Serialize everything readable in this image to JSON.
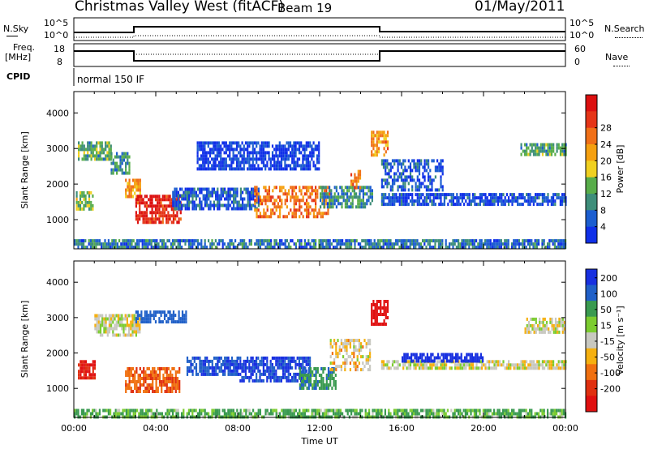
{
  "header": {
    "title": "Christmas Valley West (fitACF)",
    "beam": "Beam 19",
    "date": "01/May/2011"
  },
  "status_panel": {
    "left_top_label": "N.Sky",
    "left_y_top": "10^5",
    "left_y_bot": "10^0",
    "right_y_top": "10^5",
    "right_y_bot": "10^0",
    "right_top_label": "N.Search",
    "freq_label_1": "Freq.",
    "freq_label_2": "[MHz]",
    "freq_tick_hi": "18",
    "freq_tick_lo": "8",
    "nave_tick_hi": "60",
    "nave_tick_lo": "0",
    "nave_label": "Nave",
    "cpid_label": "CPID",
    "cpid_value": "normal 150 IF"
  },
  "chart_data": [
    {
      "type": "heatmap",
      "title": "",
      "xlabel": "",
      "ylabel": "Slant Range [km]",
      "xlim_hours": [
        0,
        24
      ],
      "ylim_km": [
        180,
        4600
      ],
      "yticks": [
        "1000",
        "2000",
        "3000",
        "4000"
      ],
      "colorbar": {
        "label": "Power [dB]",
        "ticks": [
          "4",
          "8",
          "12",
          "16",
          "20",
          "24",
          "28"
        ],
        "colors": [
          "#1030e8",
          "#1c5ed0",
          "#3e8e7a",
          "#58ad4a",
          "#f0d020",
          "#f5a010",
          "#f07018",
          "#e53518",
          "#dc1010"
        ]
      },
      "regions": [
        {
          "t": [
            0.2,
            1.8
          ],
          "r": [
            2700,
            3200
          ],
          "level": 12
        },
        {
          "t": [
            1.8,
            2.7
          ],
          "r": [
            2300,
            2900
          ],
          "level": 10
        },
        {
          "t": [
            0.1,
            0.9
          ],
          "r": [
            1300,
            1800
          ],
          "level": 14
        },
        {
          "t": [
            2.5,
            3.2
          ],
          "r": [
            1650,
            2150
          ],
          "level": 20
        },
        {
          "t": [
            3.0,
            5.2
          ],
          "r": [
            900,
            1700
          ],
          "level": 27
        },
        {
          "t": [
            4.8,
            9.0
          ],
          "r": [
            1350,
            1900
          ],
          "level": 6
        },
        {
          "t": [
            8.8,
            12.5
          ],
          "r": [
            1100,
            1950
          ],
          "level": 22
        },
        {
          "t": [
            12.0,
            14.6
          ],
          "r": [
            1400,
            1950
          ],
          "level": 9
        },
        {
          "t": [
            13.5,
            14.0
          ],
          "r": [
            1900,
            2400
          ],
          "level": 22
        },
        {
          "t": [
            14.5,
            15.3
          ],
          "r": [
            2800,
            3500
          ],
          "level": 20
        },
        {
          "t": [
            15.0,
            24.0
          ],
          "r": [
            1450,
            1750
          ],
          "level": 5
        },
        {
          "t": [
            15.0,
            18.0
          ],
          "r": [
            1800,
            2700
          ],
          "level": 6
        },
        {
          "t": [
            21.8,
            24.0
          ],
          "r": [
            2850,
            3150
          ],
          "level": 11
        },
        {
          "t": [
            6.0,
            12.0
          ],
          "r": [
            2400,
            3200
          ],
          "level": 4
        },
        {
          "t": [
            0.0,
            24.0
          ],
          "r": [
            180,
            450
          ],
          "level": 8
        }
      ]
    },
    {
      "type": "heatmap",
      "title": "",
      "xlabel": "Time UT",
      "ylabel": "Slant Range [km]",
      "xlim_hours": [
        0,
        24
      ],
      "ylim_km": [
        180,
        4600
      ],
      "xticks": [
        "00:00",
        "04:00",
        "08:00",
        "12:00",
        "16:00",
        "20:00",
        "00:00"
      ],
      "yticks": [
        "1000",
        "2000",
        "3000",
        "4000"
      ],
      "colorbar": {
        "label": "Velocity [m s⁻¹]",
        "ticks": [
          "200",
          "100",
          "50",
          "15",
          "-15",
          "-50",
          "-100",
          "-200"
        ],
        "colors": [
          "#1830e0",
          "#2060c8",
          "#3a9a50",
          "#7ccc30",
          "#c8c8c0",
          "#f5b010",
          "#f07010",
          "#e03010",
          "#e01010"
        ]
      },
      "regions": [
        {
          "t": [
            0.2,
            1.0
          ],
          "r": [
            1300,
            1800
          ],
          "vel": -150
        },
        {
          "t": [
            1.0,
            3.2
          ],
          "r": [
            2500,
            3100
          ],
          "vel": 0
        },
        {
          "t": [
            2.5,
            5.2
          ],
          "r": [
            900,
            1600
          ],
          "vel": -70
        },
        {
          "t": [
            3.0,
            5.5
          ],
          "r": [
            2900,
            3200
          ],
          "vel": 120
        },
        {
          "t": [
            5.5,
            8.0
          ],
          "r": [
            1400,
            1900
          ],
          "vel": 140
        },
        {
          "t": [
            8.0,
            11.5
          ],
          "r": [
            1200,
            1900
          ],
          "vel": 160
        },
        {
          "t": [
            11.0,
            12.8
          ],
          "r": [
            1000,
            1600
          ],
          "vel": 60
        },
        {
          "t": [
            12.5,
            14.5
          ],
          "r": [
            1500,
            2400
          ],
          "vel": -10
        },
        {
          "t": [
            14.5,
            15.3
          ],
          "r": [
            2800,
            3500
          ],
          "vel": -200
        },
        {
          "t": [
            15.0,
            24.0
          ],
          "r": [
            1550,
            1800
          ],
          "vel": 0
        },
        {
          "t": [
            16.0,
            20.0
          ],
          "r": [
            1800,
            2000
          ],
          "vel": 180
        },
        {
          "t": [
            22.0,
            24.0
          ],
          "r": [
            2600,
            3000
          ],
          "vel": 0
        },
        {
          "t": [
            0.0,
            24.0
          ],
          "r": [
            180,
            420
          ],
          "vel": 40
        }
      ]
    }
  ]
}
